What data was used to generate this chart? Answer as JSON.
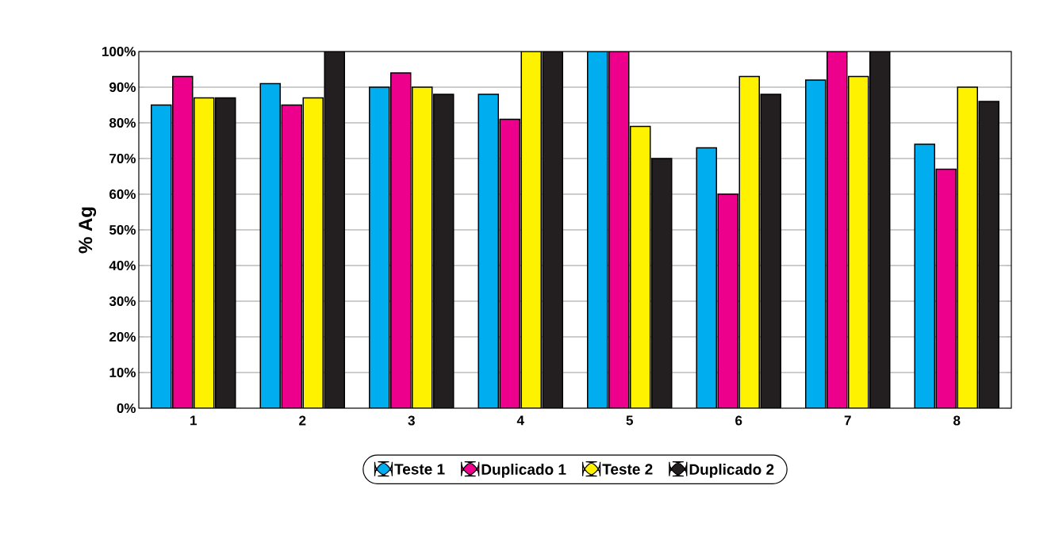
{
  "chart_data": {
    "type": "bar",
    "ylabel": "% Ag",
    "categories": [
      "1",
      "2",
      "3",
      "4",
      "5",
      "6",
      "7",
      "8"
    ],
    "series": [
      {
        "name": "Teste 1",
        "color": "#00aeef",
        "values": [
          85,
          91,
          90,
          88,
          100,
          73,
          92,
          74
        ]
      },
      {
        "name": "Duplicado 1",
        "color": "#ec008c",
        "values": [
          93,
          85,
          94,
          81,
          100,
          60,
          100,
          67
        ]
      },
      {
        "name": "Teste 2",
        "color": "#fff200",
        "values": [
          87,
          87,
          90,
          100,
          79,
          93,
          93,
          90
        ]
      },
      {
        "name": "Duplicado 2",
        "color": "#231f20",
        "values": [
          87,
          100,
          88,
          100,
          70,
          88,
          100,
          86
        ]
      }
    ],
    "ylim": [
      0,
      100
    ],
    "yticks": [
      {
        "value": 0,
        "label": "0%"
      },
      {
        "value": 10,
        "label": "10%"
      },
      {
        "value": 20,
        "label": "20%"
      },
      {
        "value": 30,
        "label": "30%"
      },
      {
        "value": 40,
        "label": "40%"
      },
      {
        "value": 50,
        "label": "50%"
      },
      {
        "value": 60,
        "label": "60%"
      },
      {
        "value": 70,
        "label": "70%"
      },
      {
        "value": 80,
        "label": "80%"
      },
      {
        "value": 90,
        "label": "90%"
      },
      {
        "value": 100,
        "label": "100%"
      }
    ],
    "grid": "y",
    "legend": "bottom"
  }
}
